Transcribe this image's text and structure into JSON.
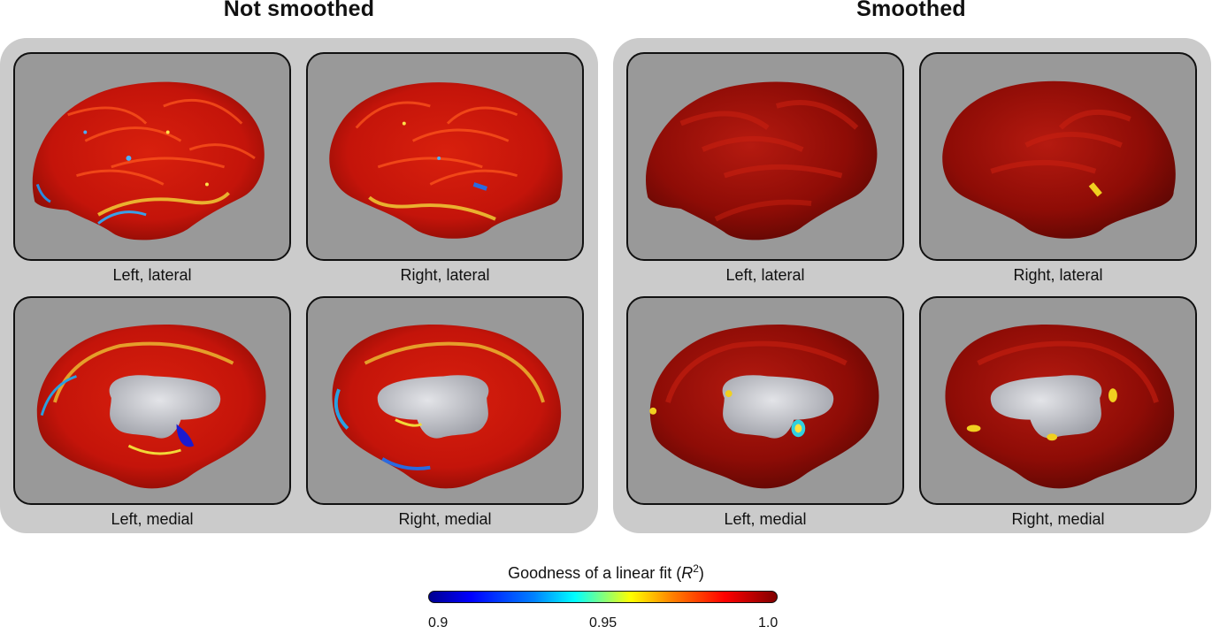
{
  "groups": {
    "not_smoothed": {
      "title": "Not smoothed"
    },
    "smoothed": {
      "title": "Smoothed"
    }
  },
  "views": {
    "left_lateral": "Left, lateral",
    "right_lateral": "Right, lateral",
    "left_medial": "Left, medial",
    "right_medial": "Right, medial"
  },
  "colorbar": {
    "title_prefix": "Goodness of a linear fit (",
    "title_var": "R",
    "title_sup": "2",
    "title_suffix": ")",
    "ticks": [
      "0.9",
      "0.95",
      "1.0"
    ],
    "colors": [
      "#00008f",
      "#0000ff",
      "#00ffff",
      "#ffff00",
      "#ff0000",
      "#800000"
    ]
  },
  "colors": {
    "panel_bg": "#cbcbcb",
    "view_bg": "#999999",
    "cortex_red": "#c41208",
    "cortex_dark": "#8e0b05",
    "callosum": "#c8cad0"
  }
}
